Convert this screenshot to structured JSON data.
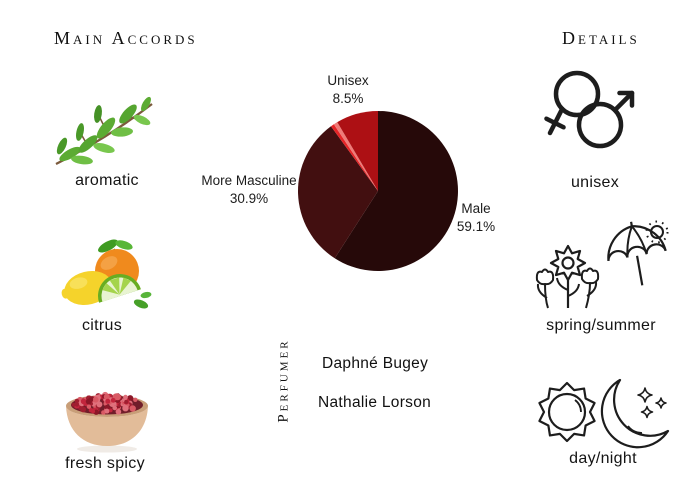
{
  "page": {
    "background": "#ffffff"
  },
  "main_accords": {
    "title": "Main Accords",
    "items": [
      {
        "label": "aromatic",
        "icon": "herb-sprig"
      },
      {
        "label": "citrus",
        "icon": "citrus-fruits"
      },
      {
        "label": "fresh spicy",
        "icon": "pink-peppercorn-bowl"
      }
    ]
  },
  "details": {
    "title": "Details",
    "items": [
      {
        "label": "unisex",
        "icon": "gender-symbols"
      },
      {
        "label": "spring/summer",
        "icon": "flowers-umbrella-sun"
      },
      {
        "label": "day/night",
        "icon": "sun-moon-stars"
      }
    ]
  },
  "perfumer": {
    "title": "Perfumer",
    "names": [
      "Daphné Bugey",
      "Nathalie Lorson"
    ]
  },
  "chart_data": {
    "type": "pie",
    "title": "",
    "start_angle_deg": 0,
    "direction": "clockwise",
    "legend_position": "none",
    "slices": [
      {
        "label": "Male",
        "value": 59.1,
        "color": "#260909"
      },
      {
        "label": "More Masculine",
        "value": 30.9,
        "color": "#420f10"
      },
      {
        "label": "",
        "value": 0.7,
        "color": "#e52527"
      },
      {
        "label": "",
        "value": 0.8,
        "color": "#ef7b78"
      },
      {
        "label": "Unisex",
        "value": 8.5,
        "color": "#ad1014"
      }
    ]
  }
}
